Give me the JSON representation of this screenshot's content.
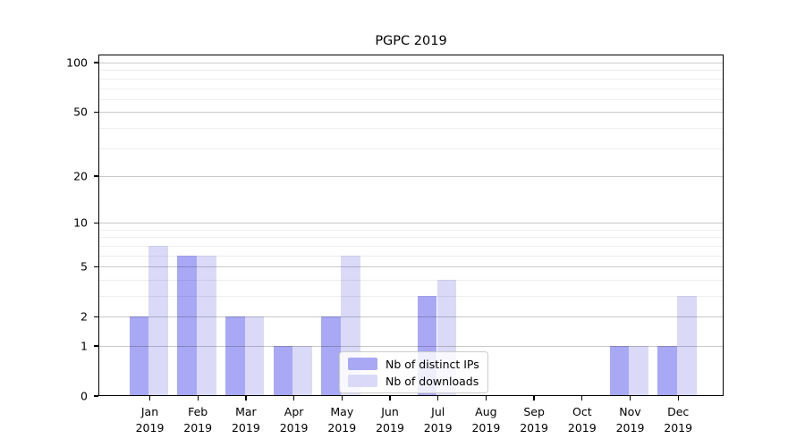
{
  "chart_data": {
    "type": "bar",
    "title": "PGPC 2019",
    "categories": [
      "Jan 2019",
      "Feb 2019",
      "Mar 2019",
      "Apr 2019",
      "May 2019",
      "Jun 2019",
      "Jul 2019",
      "Aug 2019",
      "Sep 2019",
      "Oct 2019",
      "Nov 2019",
      "Dec 2019"
    ],
    "months": [
      "Jan",
      "Feb",
      "Mar",
      "Apr",
      "May",
      "Jun",
      "Jul",
      "Aug",
      "Sep",
      "Oct",
      "Nov",
      "Dec"
    ],
    "year": "2019",
    "series": [
      {
        "name": "Nb of distinct IPs",
        "color": "#a8a8f5",
        "values": [
          2,
          6,
          2,
          1,
          2,
          0,
          3,
          0,
          0,
          0,
          1,
          1
        ]
      },
      {
        "name": "Nb of downloads",
        "color": "#dadaf8",
        "values": [
          7,
          6,
          2,
          1,
          6,
          0,
          4,
          0,
          0,
          0,
          1,
          3
        ]
      }
    ],
    "ylabel": "",
    "xlabel": "",
    "yscale": "log10(value+1)",
    "yticks": [
      0,
      1,
      2,
      5,
      10,
      20,
      50,
      100
    ],
    "ytick_labels": [
      "0",
      "1",
      "2",
      "5",
      "10",
      "20",
      "50",
      "100"
    ],
    "minor_gridlines": [
      3,
      4,
      6,
      7,
      8,
      9,
      30,
      40,
      60,
      70,
      80,
      90
    ],
    "ylim": [
      0,
      112
    ],
    "grid": "horizontal",
    "legend": {
      "position": "lower center",
      "entries": [
        "Nb of distinct IPs",
        "Nb of downloads"
      ]
    }
  }
}
